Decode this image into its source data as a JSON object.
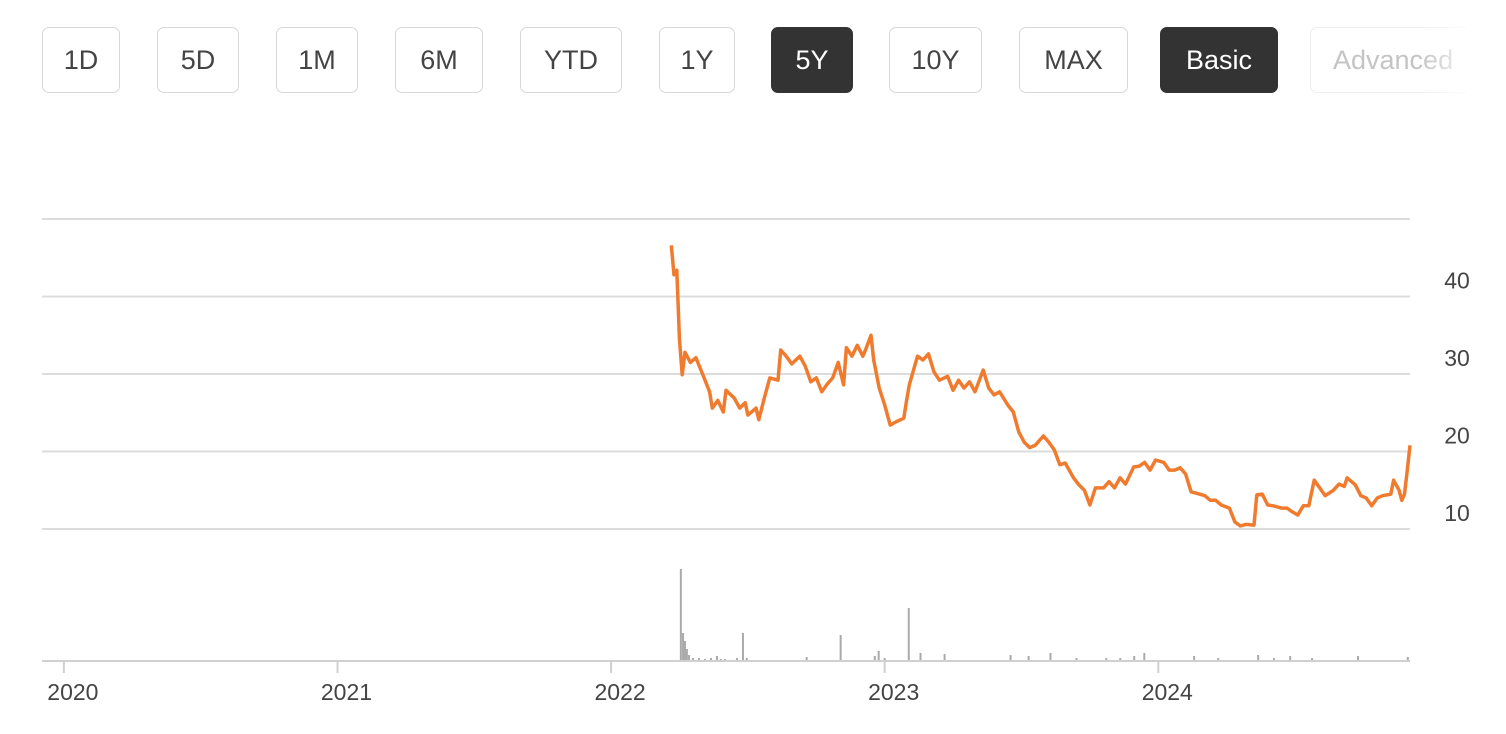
{
  "range_buttons": [
    "1D",
    "5D",
    "1M",
    "6M",
    "YTD",
    "1Y",
    "5Y",
    "10Y",
    "MAX"
  ],
  "view_buttons": [
    "Basic",
    "Advanced"
  ],
  "chart_data": [
    {
      "type": "line",
      "color": "#f07b2e",
      "grid": true,
      "xlim": [
        2019.92,
        2024.92
      ],
      "xticks": [
        2020,
        2021,
        2022,
        2023,
        2024
      ],
      "ylim": [
        10,
        50
      ],
      "yticks": [
        10,
        20,
        30,
        40
      ],
      "x": [
        2022.22,
        2022.23,
        2022.24,
        2022.25,
        2022.26,
        2022.27,
        2022.29,
        2022.31,
        2022.34,
        2022.36,
        2022.37,
        2022.39,
        2022.41,
        2022.42,
        2022.45,
        2022.47,
        2022.49,
        2022.5,
        2022.53,
        2022.54,
        2022.56,
        2022.58,
        2022.61,
        2022.62,
        2022.64,
        2022.66,
        2022.69,
        2022.71,
        2022.73,
        2022.75,
        2022.77,
        2022.79,
        2022.81,
        2022.83,
        2022.85,
        2022.86,
        2022.88,
        2022.9,
        2022.92,
        2022.93,
        2022.95,
        2022.96,
        2022.98,
        2023.0,
        2023.02,
        2023.04,
        2023.07,
        2023.08,
        2023.09,
        2023.12,
        2023.14,
        2023.16,
        2023.18,
        2023.2,
        2023.23,
        2023.25,
        2023.27,
        2023.29,
        2023.31,
        2023.33,
        2023.36,
        2023.38,
        2023.4,
        2023.42,
        2023.45,
        2023.47,
        2023.49,
        2023.51,
        2023.53,
        2023.55,
        2023.58,
        2023.6,
        2023.62,
        2023.64,
        2023.66,
        2023.69,
        2023.71,
        2023.73,
        2023.75,
        2023.77,
        2023.8,
        2023.82,
        2023.84,
        2023.86,
        2023.88,
        2023.91,
        2023.93,
        2023.95,
        2023.97,
        2023.99,
        2024.02,
        2024.04,
        2024.06,
        2024.08,
        2024.1,
        2024.12,
        2024.15,
        2024.17,
        2024.19,
        2024.21,
        2024.23,
        2024.26,
        2024.28,
        2024.3,
        2024.32,
        2024.35,
        2024.36,
        2024.38,
        2024.4,
        2024.42,
        2024.45,
        2024.47,
        2024.49,
        2024.51,
        2024.53,
        2024.55,
        2024.57,
        2024.59,
        2024.61,
        2024.64,
        2024.66,
        2024.68,
        2024.69,
        2024.72,
        2024.74,
        2024.76,
        2024.78,
        2024.8,
        2024.82,
        2024.85,
        2024.86,
        2024.88,
        2024.89,
        2024.9,
        2024.91,
        2024.92
      ],
      "values": [
        46.6,
        42.8,
        43.4,
        34.4,
        29.9,
        32.8,
        31.5,
        32.1,
        29.5,
        27.7,
        25.6,
        26.6,
        25.1,
        27.9,
        26.9,
        25.6,
        26.3,
        24.7,
        25.6,
        24.1,
        26.9,
        29.5,
        29.2,
        33.1,
        32.3,
        31.3,
        32.3,
        31.0,
        29.0,
        29.5,
        27.7,
        28.7,
        29.5,
        31.5,
        28.6,
        33.4,
        32.3,
        33.7,
        32.3,
        33.1,
        35.0,
        31.8,
        28.2,
        26.0,
        23.4,
        23.8,
        24.3,
        26.6,
        28.6,
        32.3,
        31.8,
        32.6,
        30.3,
        29.2,
        29.7,
        27.9,
        29.2,
        28.2,
        29.0,
        27.7,
        30.5,
        28.2,
        27.3,
        27.7,
        26.0,
        25.1,
        22.5,
        21.2,
        20.5,
        20.8,
        22.0,
        21.2,
        20.2,
        18.3,
        18.5,
        16.6,
        15.7,
        15.0,
        13.1,
        15.3,
        15.3,
        16.1,
        15.3,
        16.6,
        15.8,
        18.0,
        18.1,
        18.6,
        17.6,
        18.9,
        18.6,
        17.6,
        17.6,
        17.9,
        17.1,
        14.8,
        14.5,
        14.3,
        13.7,
        13.7,
        13.1,
        12.7,
        10.9,
        10.4,
        10.6,
        10.5,
        14.4,
        14.5,
        13.1,
        13.0,
        12.7,
        12.7,
        12.2,
        11.8,
        13.0,
        13.0,
        16.3,
        15.3,
        14.3,
        15.0,
        15.8,
        15.5,
        16.6,
        15.7,
        14.3,
        14.0,
        13.0,
        14.0,
        14.3,
        14.5,
        16.3,
        15.0,
        13.7,
        14.5,
        17.6,
        20.8
      ]
    },
    {
      "type": "bar",
      "color": "#aaaaaa",
      "ylim": [
        0,
        100
      ],
      "x": [
        2022.255,
        2022.263,
        2022.27,
        2022.277,
        2022.285,
        2022.299,
        2022.321,
        2022.343,
        2022.365,
        2022.387,
        2022.401,
        2022.416,
        2022.46,
        2022.482,
        2022.496,
        2022.715,
        2022.839,
        2022.964,
        2022.978,
        2023.0,
        2023.088,
        2023.131,
        2023.219,
        2023.46,
        2023.526,
        2023.606,
        2023.701,
        2023.81,
        2023.861,
        2023.912,
        2023.949,
        2024.131,
        2024.219,
        2024.365,
        2024.423,
        2024.482,
        2024.562,
        2024.73,
        2024.912
      ],
      "values": [
        92,
        28,
        20,
        12,
        6,
        3,
        3,
        2,
        3,
        5,
        2,
        2,
        3,
        28,
        3,
        4,
        26,
        5,
        10,
        3,
        53,
        8,
        7,
        6,
        5,
        8,
        3,
        3,
        3,
        5,
        8,
        5,
        3,
        6,
        3,
        5,
        3,
        5,
        4
      ]
    }
  ]
}
